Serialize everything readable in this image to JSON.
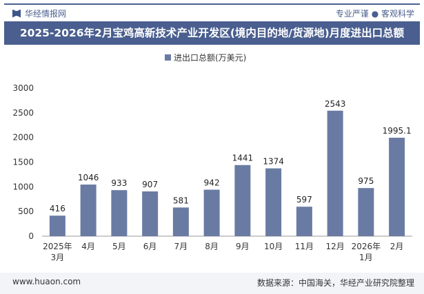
{
  "header": {
    "brand": "华经情报网",
    "slogan": "专业严谨 ● 客观科学",
    "title": "2025-2026年2月宝鸡高新技术产业开发区(境内目的地/货源地)月度进出口总额"
  },
  "footer": {
    "website": "www.huaon.com",
    "source": "数据来源：中国海关，华经产业研究院整理"
  },
  "colors": {
    "bar": "#6a7ba3",
    "header": "#4a5f8f"
  },
  "chart_data": {
    "type": "bar",
    "title": "2025-2026年2月宝鸡高新技术产业开发区(境内目的地/货源地)月度进出口总额",
    "categories": [
      "2025年\n3月",
      "4月",
      "5月",
      "6月",
      "7月",
      "8月",
      "9月",
      "10月",
      "11月",
      "12月",
      "2026年\n1月",
      "2月"
    ],
    "series": [
      {
        "name": "进出口总额(万美元)",
        "values": [
          416,
          1046,
          933,
          907,
          581,
          942,
          1441,
          1374,
          597,
          2543,
          975,
          1995.1
        ]
      }
    ],
    "ylim": [
      0,
      3000
    ],
    "yticks": [
      0,
      500,
      1000,
      1500,
      2000,
      2500,
      3000
    ],
    "grid": false,
    "legend": "top-center"
  }
}
